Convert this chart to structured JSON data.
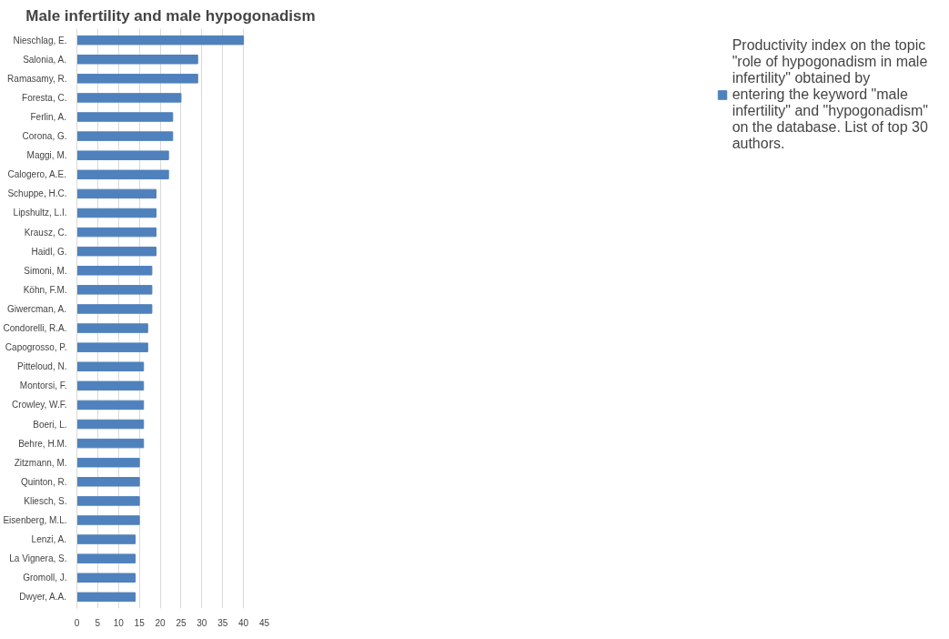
{
  "chart_data": {
    "type": "bar",
    "orientation": "horizontal",
    "title": "Male infertility and male hypogonadism",
    "categories": [
      "Nieschlag, E.",
      "Salonia, A.",
      "Ramasamy, R.",
      "Foresta, C.",
      "Ferlin, A.",
      "Corona, G.",
      "Maggi, M.",
      "Calogero, A.E.",
      "Schuppe, H.C.",
      "Lipshultz, L.I.",
      "Krausz, C.",
      "Haidl, G.",
      "Simoni, M.",
      "Köhn, F.M.",
      "Giwercman, A.",
      "Condorelli, R.A.",
      "Capogrosso, P.",
      "Pitteloud, N.",
      "Montorsi, F.",
      "Crowley, W.F.",
      "Boeri, L.",
      "Behre, H.M.",
      "Zitzmann, M.",
      "Quinton, R.",
      "Kliesch, S.",
      "Eisenberg, M.L.",
      "Lenzi, A.",
      "La Vignera, S.",
      "Gromoll, J.",
      "Dwyer, A.A."
    ],
    "series": [
      {
        "name": "Productivity index on the topic \"role of hypogonadism in male infertility\" obtained by entering the keyword \"male infertility\" and \"hypogonadism\" on the database. List of top 30 authors.",
        "color": "#4f81bd",
        "values": [
          40,
          29,
          29,
          25,
          23,
          23,
          22,
          22,
          19,
          19,
          19,
          19,
          18,
          18,
          18,
          17,
          17,
          16,
          16,
          16,
          16,
          16,
          15,
          15,
          15,
          15,
          14,
          14,
          14,
          14
        ]
      }
    ],
    "xlim": [
      0,
      45
    ],
    "xticks": [
      0,
      5,
      10,
      15,
      20,
      25,
      30,
      35,
      40,
      45
    ],
    "grid": "x",
    "legend": "right"
  }
}
